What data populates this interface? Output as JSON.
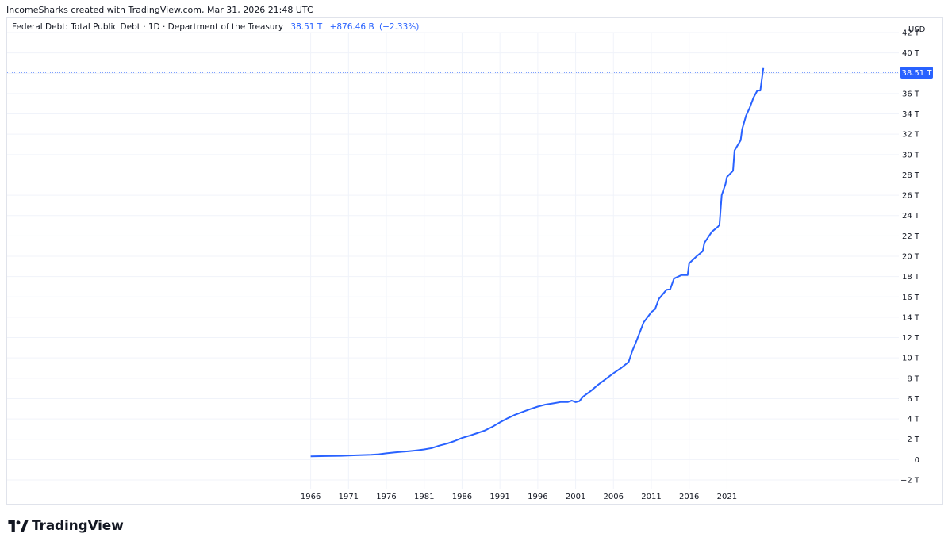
{
  "header": {
    "credit": "IncomeSharks created with TradingView.com, Mar 31, 2026 21:48 UTC"
  },
  "legend": {
    "symbol": "Federal Debt: Total Public Debt · 1D · Department of the Treasury",
    "last_value": "38.51 T",
    "change": "+876.46 B",
    "change_pct": "(+2.33%)"
  },
  "price_scale": {
    "currency": "USD",
    "current_label": "38.51 T"
  },
  "branding": {
    "logo_text": "TradingView"
  },
  "colors": {
    "line": "#2962ff",
    "grid": "#f0f3fa",
    "text": "#131722"
  },
  "chart_data": {
    "type": "line",
    "x_tick_labels": [
      "1966",
      "1971",
      "1976",
      "1981",
      "1986",
      "1991",
      "1996",
      "2001",
      "2006",
      "2011",
      "2016",
      "2021"
    ],
    "y_tick_labels": [
      "−2 T",
      "0",
      "2 T",
      "4 T",
      "6 T",
      "8 T",
      "10 T",
      "12 T",
      "14 T",
      "16 T",
      "18 T",
      "20 T",
      "22 T",
      "24 T",
      "26 T",
      "28 T",
      "30 T",
      "32 T",
      "34 T",
      "36 T",
      "38 T",
      "40 T",
      "42 T"
    ],
    "y_ticks": [
      -2,
      0,
      2,
      4,
      6,
      8,
      10,
      12,
      14,
      16,
      18,
      20,
      22,
      24,
      26,
      28,
      30,
      32,
      34,
      36,
      38,
      40,
      42
    ],
    "xlim": [
      1925.9,
      2043.7
    ],
    "ylim": [
      -2.0,
      42.0
    ],
    "grid": true,
    "last_value": 38.51,
    "series": [
      {
        "x": [
          1966.0,
          1968.0,
          1970.0,
          1972.0,
          1974.0,
          1975.0,
          1976.0,
          1977.0,
          1978.0,
          1979.0,
          1980.0,
          1981.0,
          1982.0,
          1983.0,
          1984.0,
          1985.0,
          1986.0,
          1987.0,
          1988.0,
          1989.0,
          1990.0,
          1991.0,
          1992.0,
          1993.0,
          1994.0,
          1995.0,
          1996.0,
          1997.0,
          1998.0,
          1999.0,
          2000.0,
          2000.5,
          2001.0,
          2001.5,
          2002.0,
          2003.0,
          2004.0,
          2005.0,
          2006.0,
          2007.0,
          2008.0,
          2008.5,
          2009.0,
          2010.0,
          2011.0,
          2011.5,
          2012.0,
          2013.0,
          2013.5,
          2014.0,
          2015.0,
          2015.8,
          2016.0,
          2017.0,
          2017.8,
          2018.0,
          2019.0,
          2019.8,
          2020.0,
          2020.3,
          2020.8,
          2021.0,
          2021.8,
          2022.0,
          2022.8,
          2023.0,
          2023.5,
          2024.0,
          2024.5,
          2025.0,
          2025.4,
          2025.8
        ],
        "y": [
          0.32,
          0.35,
          0.37,
          0.43,
          0.48,
          0.53,
          0.62,
          0.7,
          0.77,
          0.83,
          0.91,
          1.0,
          1.14,
          1.38,
          1.57,
          1.82,
          2.13,
          2.35,
          2.6,
          2.86,
          3.23,
          3.66,
          4.06,
          4.41,
          4.69,
          4.97,
          5.22,
          5.41,
          5.53,
          5.66,
          5.67,
          5.8,
          5.65,
          5.75,
          6.2,
          6.75,
          7.38,
          7.93,
          8.5,
          9.0,
          9.6,
          10.7,
          11.6,
          13.5,
          14.5,
          14.8,
          15.8,
          16.7,
          16.75,
          17.8,
          18.15,
          18.15,
          19.3,
          20.0,
          20.5,
          21.3,
          22.4,
          22.9,
          23.1,
          26.0,
          27.1,
          27.8,
          28.4,
          30.4,
          31.4,
          32.5,
          33.8,
          34.6,
          35.6,
          36.3,
          36.3,
          38.51
        ]
      }
    ]
  }
}
